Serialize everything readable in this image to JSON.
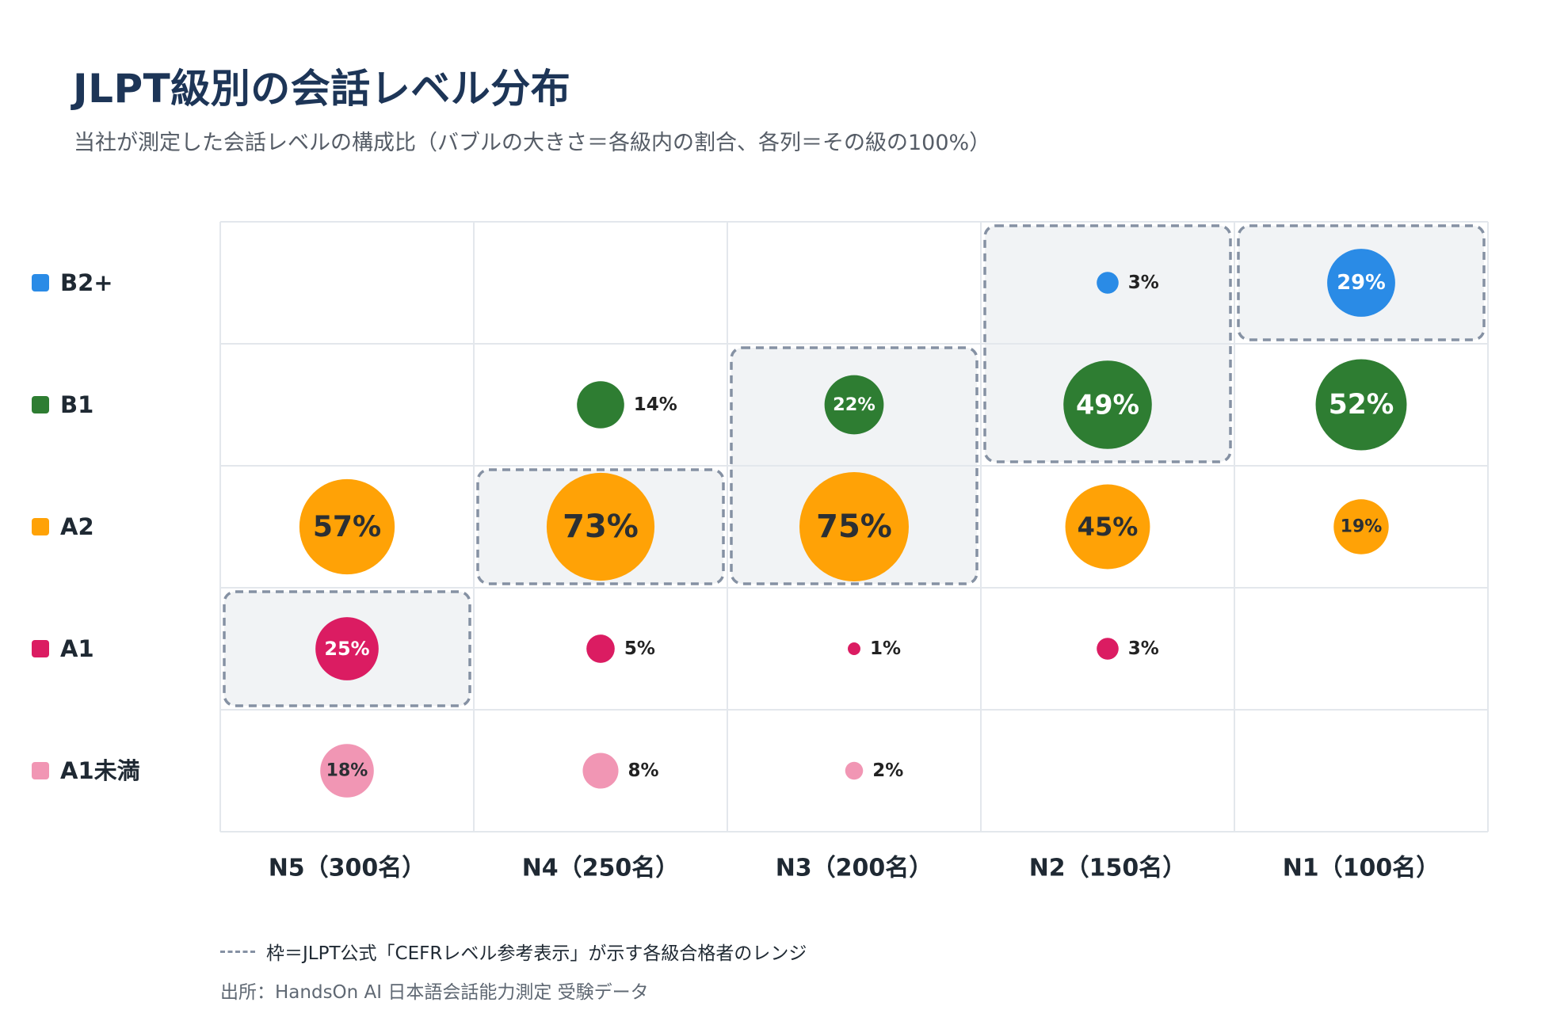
{
  "title": "JLPT級別の会話レベル分布",
  "subtitle": "当社が測定した会話レベルの構成比（バブルの大きさ＝各級内の割合、各列＝その級の100%）",
  "legend_note": "枠＝JLPT公式「CEFRレベル参考表示」が示す各級合格者のレンジ",
  "source": "出所：HandsOn AI 日本語会話能力測定 受験データ",
  "chart_data": {
    "type": "bubble-matrix",
    "columns": [
      "N5（300名）",
      "N4（250名）",
      "N3（200名）",
      "N2（150名）",
      "N1（100名）"
    ],
    "rows": [
      {
        "name": "B2+",
        "color": "#2a8be6",
        "values": [
          null,
          null,
          null,
          3,
          29
        ]
      },
      {
        "name": "B1",
        "color": "#2e7d32",
        "values": [
          null,
          14,
          22,
          49,
          52
        ]
      },
      {
        "name": "A2",
        "color": "#ffa206",
        "values": [
          57,
          73,
          75,
          45,
          19
        ]
      },
      {
        "name": "A1",
        "color": "#db1c62",
        "values": [
          25,
          5,
          1,
          3,
          null
        ]
      },
      {
        "name": "A1未満",
        "color": "#f196b4",
        "values": [
          18,
          8,
          2,
          null,
          null
        ]
      }
    ],
    "value_suffix": "%",
    "official_ranges": [
      {
        "column": "N5（300名）",
        "rows": [
          "A1"
        ]
      },
      {
        "column": "N4（250名）",
        "rows": [
          "A2"
        ]
      },
      {
        "column": "N3（200名）",
        "rows": [
          "B1",
          "A2"
        ]
      },
      {
        "column": "N2（150名）",
        "rows": [
          "B2+",
          "B1"
        ]
      },
      {
        "column": "N1（100名）",
        "rows": [
          "B2+"
        ]
      }
    ],
    "range_frame_color": "#8591a3",
    "grid": true
  }
}
